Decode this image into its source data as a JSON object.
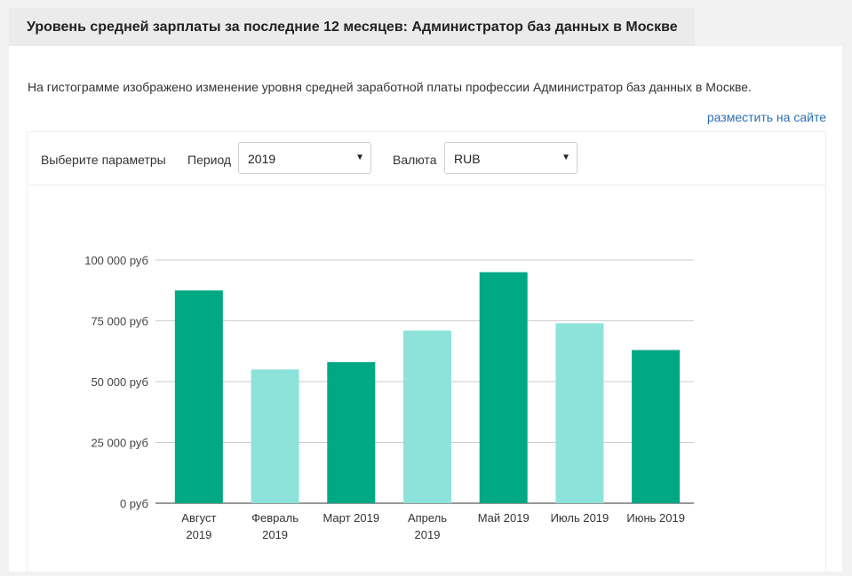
{
  "header": {
    "title": "Уровень средней зарплаты за последние 12 месяцев: Администратор баз данных в Москве"
  },
  "description": "На гистограмме изображено изменение уровня средней заработной платы профессии Администратор баз данных в Москве.",
  "embed_link": "разместить на сайте",
  "controls": {
    "params_label": "Выберите параметры",
    "period_label": "Период",
    "period_value": "2019",
    "currency_label": "Валюта",
    "currency_value": "RUB"
  },
  "chart_data": {
    "type": "bar",
    "categories": [
      [
        "Август",
        "2019"
      ],
      [
        "Февраль",
        "2019"
      ],
      [
        "Март 2019"
      ],
      [
        "Апрель",
        "2019"
      ],
      [
        "Май 2019"
      ],
      [
        "Июль 2019"
      ],
      [
        "Июнь 2019"
      ]
    ],
    "values": [
      87500,
      55000,
      58000,
      71000,
      95000,
      74000,
      63000
    ],
    "bar_colors": [
      "#00a884",
      "#8de3d9",
      "#00a884",
      "#8de3d9",
      "#00a884",
      "#8de3d9",
      "#00a884"
    ],
    "yticks": [
      0,
      25000,
      50000,
      75000,
      100000
    ],
    "ytick_labels": [
      "0 руб",
      "25 000 руб",
      "50 000 руб",
      "75 000 руб",
      "100 000 руб"
    ],
    "ylim": [
      0,
      100000
    ],
    "grid": true,
    "legend": "none"
  }
}
